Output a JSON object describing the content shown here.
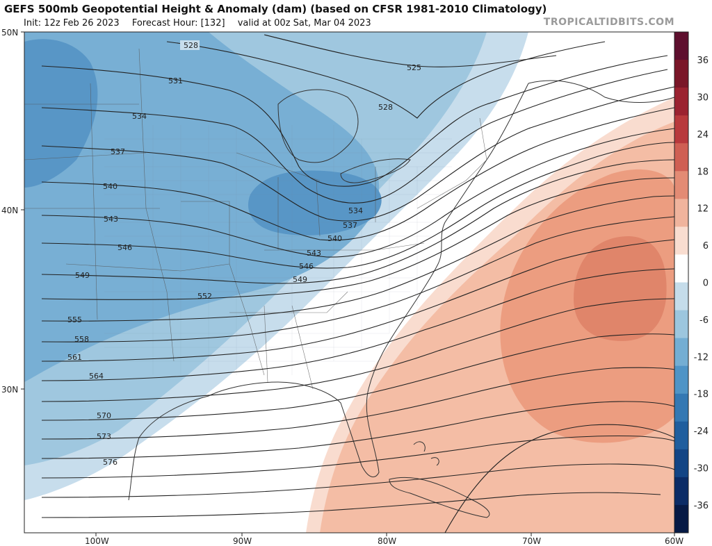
{
  "header": {
    "title": "GEFS 500mb Geopotential Height & Anomaly (dam) (based on CFSR 1981-2010 Climatology)",
    "init": "Init: 12z Feb 26 2023",
    "forecast_hour": "Forecast Hour: [132]",
    "valid": "valid at 00z Sat, Mar 04 2023",
    "brand": "TROPICALTIDBITS.COM"
  },
  "axes": {
    "lat_labels": [
      "50N",
      "40N",
      "30N"
    ],
    "lon_labels": [
      "100W",
      "90W",
      "80W",
      "70W",
      "60W"
    ]
  },
  "contour_labels": [
    "528",
    "525",
    "531",
    "528",
    "534",
    "537",
    "540",
    "534",
    "537",
    "543",
    "540",
    "546",
    "543",
    "546",
    "549",
    "549",
    "552",
    "555",
    "558",
    "561",
    "564",
    "570",
    "573",
    "576"
  ],
  "colorbar": {
    "ticks": [
      "36",
      "30",
      "24",
      "18",
      "12",
      "6",
      "0",
      "-6",
      "-12",
      "-18",
      "-24",
      "-30",
      "-36"
    ],
    "colors": [
      "#5e0f2e",
      "#7a1628",
      "#9b2230",
      "#b8393c",
      "#cf5f53",
      "#e38b74",
      "#f0b49d",
      "#f9ddd0",
      "#ffffff",
      "#c5dcea",
      "#9cc6de",
      "#74aed3",
      "#4f94c6",
      "#3478b3",
      "#1f5e9e",
      "#134585",
      "#0b2c66",
      "#061a45"
    ]
  },
  "icons": {
    "map": "geo-map",
    "colorbar": "anomaly-colorbar"
  }
}
